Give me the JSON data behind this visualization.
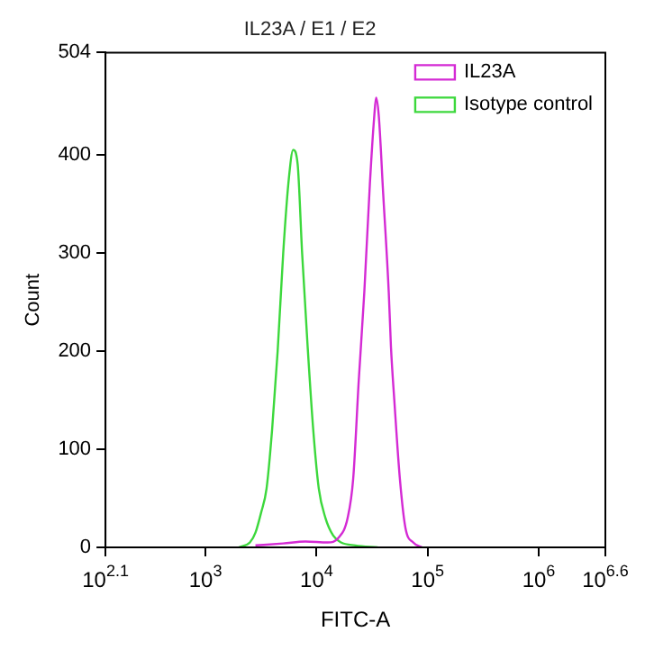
{
  "chart_data": {
    "type": "line",
    "title": "IL23A / E1 / E2",
    "xlabel": "FITC-A",
    "ylabel": "Count",
    "log": "x",
    "xlim": [
      125.9,
      3981072
    ],
    "xticks": [
      {
        "value": 125.9,
        "label": "10$^{2.1}$"
      },
      {
        "value": 1000,
        "label": "10$^{3}$"
      },
      {
        "value": 10000,
        "label": "10$^{4}$"
      },
      {
        "value": 100000,
        "label": "10$^{5}$"
      },
      {
        "value": 1000000,
        "label": "10$^{6}$"
      },
      {
        "value": 3981072,
        "label": "10$^{6.6}$"
      }
    ],
    "ylim": [
      0,
      504
    ],
    "yticks": [
      0,
      100,
      200,
      300,
      400,
      504
    ],
    "grid": false,
    "legend": "top right",
    "marker": "none",
    "line_style": "solid",
    "series": [
      {
        "name": "IL23A",
        "color": "#d42ad4",
        "x": [
          2818,
          5012,
          7943,
          12589,
          15849,
          19055,
          21380,
          23988,
          26915,
          30200,
          33113,
          34356,
          36308,
          39811,
          44668,
          46774,
          50119,
          56234,
          63096,
          74131,
          89125
        ],
        "values": [
          2,
          4,
          6,
          5,
          10,
          30,
          70,
          170,
          260,
          370,
          440,
          458,
          440,
          360,
          260,
          204,
          150,
          70,
          20,
          5,
          0
        ]
      },
      {
        "name": "Isotype control",
        "color": "#3cd83c",
        "x": [
          1995,
          2512,
          2818,
          3162,
          3548,
          3981,
          4467,
          5012,
          5623,
          6166,
          6761,
          7413,
          8318,
          9333,
          10471,
          12023,
          14125,
          16596,
          22387,
          35481
        ],
        "values": [
          0,
          5,
          15,
          35,
          60,
          120,
          200,
          300,
          375,
          405,
          390,
          300,
          204,
          120,
          60,
          30,
          12,
          5,
          2,
          0
        ]
      }
    ]
  }
}
